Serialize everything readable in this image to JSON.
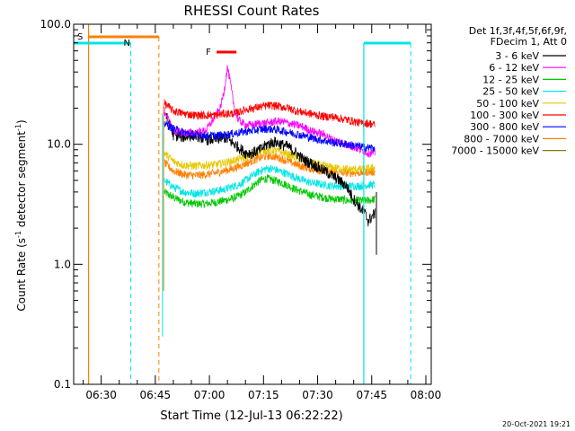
{
  "chart_data": {
    "type": "line",
    "title": "RHESSI Count Rates",
    "xlabel": "Start Time (12-Jul-13 06:22:22)",
    "ylabel_main": "Count Rate (s",
    "ylabel_sup1": "-1",
    "ylabel_mid": " detector segment",
    "ylabel_sup2": "-1",
    "ylabel_end": ")",
    "y_scale": "log",
    "ylim": [
      0.1,
      100
    ],
    "y_ticks": [
      {
        "value": 0.1,
        "label": "0.1"
      },
      {
        "value": 1,
        "label": "1.0"
      },
      {
        "value": 10,
        "label": "10.0"
      },
      {
        "value": 100,
        "label": "100.0"
      }
    ],
    "xlim_minutes": [
      22.37,
      121.5
    ],
    "x_ticks": [
      {
        "minute": 30,
        "label": "06:30"
      },
      {
        "minute": 45,
        "label": "06:45"
      },
      {
        "minute": 60,
        "label": "07:00"
      },
      {
        "minute": 75,
        "label": "07:15"
      },
      {
        "minute": 90,
        "label": "07:30"
      },
      {
        "minute": 105,
        "label": "07:45"
      },
      {
        "minute": 120,
        "label": "08:00"
      }
    ],
    "legend": {
      "header_line1": "Det 1f,3f,4f,5f,6f,9f,",
      "header_line2": "FDecim 1, Att 0",
      "placement": "right"
    },
    "series": [
      {
        "name": "3 - 6 keV",
        "color": "#000000",
        "points": [
          [
            47.5,
            19
          ],
          [
            50,
            12
          ],
          [
            53,
            11.5
          ],
          [
            56,
            12
          ],
          [
            59,
            11
          ],
          [
            62,
            11
          ],
          [
            64,
            11.5
          ],
          [
            66,
            10.5
          ],
          [
            68,
            9.5
          ],
          [
            70,
            8.5
          ],
          [
            72,
            8.5
          ],
          [
            74,
            9
          ],
          [
            76,
            10
          ],
          [
            78,
            10.5
          ],
          [
            80,
            10
          ],
          [
            82,
            9.5
          ],
          [
            84,
            8.5
          ],
          [
            86,
            7.5
          ],
          [
            88,
            7
          ],
          [
            90,
            6.5
          ],
          [
            92,
            6
          ],
          [
            94,
            5.5
          ],
          [
            96,
            5
          ],
          [
            98,
            4.5
          ],
          [
            100,
            3.5
          ],
          [
            102,
            2.9
          ],
          [
            103,
            2.7
          ],
          [
            104,
            2.3
          ],
          [
            106,
            2.7
          ]
        ]
      },
      {
        "name": "6 - 12 keV",
        "color": "#ff00ff",
        "points": [
          [
            47.5,
            19
          ],
          [
            50,
            13
          ],
          [
            53,
            12.5
          ],
          [
            56,
            12.5
          ],
          [
            59,
            13
          ],
          [
            61,
            16
          ],
          [
            63,
            20
          ],
          [
            64,
            27
          ],
          [
            65,
            44
          ],
          [
            66,
            30
          ],
          [
            67,
            19
          ],
          [
            68,
            16
          ],
          [
            70,
            14.5
          ],
          [
            72,
            14.5
          ],
          [
            74,
            15
          ],
          [
            76,
            15
          ],
          [
            78,
            15.5
          ],
          [
            80,
            15.5
          ],
          [
            82,
            15
          ],
          [
            84,
            14.5
          ],
          [
            86,
            14
          ],
          [
            88,
            13
          ],
          [
            90,
            12.5
          ],
          [
            92,
            12
          ],
          [
            94,
            11
          ],
          [
            96,
            10.5
          ],
          [
            98,
            10
          ],
          [
            100,
            9.5
          ],
          [
            102,
            9
          ],
          [
            104,
            8.5
          ],
          [
            106,
            8.5
          ]
        ]
      },
      {
        "name": "12 - 25 keV",
        "color": "#00c800",
        "points": [
          [
            47.5,
            4
          ],
          [
            50,
            3.6
          ],
          [
            53,
            3.3
          ],
          [
            56,
            3.2
          ],
          [
            59,
            3.2
          ],
          [
            62,
            3.3
          ],
          [
            64,
            3.4
          ],
          [
            66,
            3.5
          ],
          [
            68,
            3.7
          ],
          [
            70,
            4
          ],
          [
            72,
            4.5
          ],
          [
            74,
            5
          ],
          [
            76,
            5.2
          ],
          [
            78,
            5
          ],
          [
            80,
            4.8
          ],
          [
            82,
            4.5
          ],
          [
            84,
            4.2
          ],
          [
            86,
            4
          ],
          [
            88,
            3.8
          ],
          [
            90,
            3.7
          ],
          [
            92,
            3.6
          ],
          [
            94,
            3.5
          ],
          [
            96,
            3.5
          ],
          [
            98,
            3.4
          ],
          [
            100,
            3.4
          ],
          [
            102,
            3.4
          ],
          [
            104,
            3.4
          ],
          [
            106,
            3.5
          ]
        ]
      },
      {
        "name": "25 - 50 keV",
        "color": "#00e5e5",
        "points": [
          [
            47.5,
            5
          ],
          [
            50,
            4.4
          ],
          [
            53,
            4
          ],
          [
            56,
            3.9
          ],
          [
            59,
            4
          ],
          [
            62,
            4.1
          ],
          [
            64,
            4.2
          ],
          [
            66,
            4.4
          ],
          [
            68,
            4.6
          ],
          [
            70,
            5
          ],
          [
            72,
            5.5
          ],
          [
            74,
            6
          ],
          [
            76,
            6.3
          ],
          [
            78,
            6.2
          ],
          [
            80,
            5.9
          ],
          [
            82,
            5.6
          ],
          [
            84,
            5.3
          ],
          [
            86,
            5
          ],
          [
            88,
            4.8
          ],
          [
            90,
            4.7
          ],
          [
            92,
            4.6
          ],
          [
            94,
            4.5
          ],
          [
            96,
            4.5
          ],
          [
            98,
            4.5
          ],
          [
            100,
            4.5
          ],
          [
            102,
            4.5
          ],
          [
            104,
            4.6
          ],
          [
            106,
            4.6
          ]
        ]
      },
      {
        "name": "50 - 100 keV",
        "color": "#e6c800",
        "points": [
          [
            47.5,
            8.5
          ],
          [
            50,
            7.2
          ],
          [
            53,
            6.7
          ],
          [
            56,
            6.6
          ],
          [
            59,
            6.7
          ],
          [
            62,
            6.8
          ],
          [
            64,
            7
          ],
          [
            66,
            7.2
          ],
          [
            68,
            7.5
          ],
          [
            70,
            7.8
          ],
          [
            72,
            8.2
          ],
          [
            74,
            8.8
          ],
          [
            76,
            9
          ],
          [
            78,
            8.9
          ],
          [
            80,
            8.6
          ],
          [
            82,
            8.2
          ],
          [
            84,
            7.8
          ],
          [
            86,
            7.4
          ],
          [
            88,
            7.1
          ],
          [
            90,
            6.8
          ],
          [
            92,
            6.6
          ],
          [
            94,
            6.4
          ],
          [
            96,
            6.3
          ],
          [
            98,
            6.2
          ],
          [
            100,
            6.2
          ],
          [
            102,
            6.2
          ],
          [
            104,
            6.3
          ],
          [
            106,
            6.4
          ]
        ]
      },
      {
        "name": "100 - 300 keV",
        "color": "#ff0000",
        "points": [
          [
            47.5,
            22
          ],
          [
            50,
            19
          ],
          [
            53,
            18
          ],
          [
            56,
            17.5
          ],
          [
            59,
            17.5
          ],
          [
            62,
            17.5
          ],
          [
            64,
            18
          ],
          [
            66,
            18
          ],
          [
            68,
            18.5
          ],
          [
            70,
            19.5
          ],
          [
            72,
            20
          ],
          [
            74,
            20.5
          ],
          [
            76,
            21
          ],
          [
            78,
            21
          ],
          [
            80,
            20.5
          ],
          [
            82,
            20
          ],
          [
            84,
            19
          ],
          [
            86,
            18.5
          ],
          [
            88,
            18
          ],
          [
            90,
            17.5
          ],
          [
            92,
            17
          ],
          [
            94,
            17
          ],
          [
            96,
            16.5
          ],
          [
            98,
            16
          ],
          [
            100,
            15.5
          ],
          [
            102,
            15
          ],
          [
            104,
            15
          ],
          [
            106,
            14.5
          ]
        ]
      },
      {
        "name": "300 - 800 keV",
        "color": "#0000ff",
        "points": [
          [
            47.5,
            15
          ],
          [
            50,
            13.5
          ],
          [
            53,
            12.5
          ],
          [
            56,
            12
          ],
          [
            59,
            11.8
          ],
          [
            62,
            11.8
          ],
          [
            64,
            12
          ],
          [
            66,
            12.2
          ],
          [
            68,
            12.5
          ],
          [
            70,
            12.8
          ],
          [
            72,
            13
          ],
          [
            74,
            13.3
          ],
          [
            76,
            13.5
          ],
          [
            78,
            13.3
          ],
          [
            80,
            13
          ],
          [
            82,
            12.6
          ],
          [
            84,
            12.2
          ],
          [
            86,
            11.8
          ],
          [
            88,
            11.4
          ],
          [
            90,
            11
          ],
          [
            92,
            10.7
          ],
          [
            94,
            10.4
          ],
          [
            96,
            10.2
          ],
          [
            98,
            10
          ],
          [
            100,
            9.8
          ],
          [
            102,
            9.6
          ],
          [
            104,
            9.4
          ],
          [
            106,
            9.3
          ]
        ]
      },
      {
        "name": "800 - 7000 keV",
        "color": "#ff8000",
        "points": [
          [
            47.5,
            7
          ],
          [
            50,
            6
          ],
          [
            53,
            5.6
          ],
          [
            56,
            5.5
          ],
          [
            59,
            5.6
          ],
          [
            62,
            5.8
          ],
          [
            64,
            6
          ],
          [
            66,
            6.2
          ],
          [
            68,
            6.5
          ],
          [
            70,
            6.9
          ],
          [
            72,
            7.3
          ],
          [
            74,
            7.7
          ],
          [
            76,
            8
          ],
          [
            78,
            7.9
          ],
          [
            80,
            7.6
          ],
          [
            82,
            7.2
          ],
          [
            84,
            6.8
          ],
          [
            86,
            6.5
          ],
          [
            88,
            6.3
          ],
          [
            90,
            6.1
          ],
          [
            92,
            6
          ],
          [
            94,
            5.9
          ],
          [
            96,
            5.8
          ],
          [
            98,
            5.8
          ],
          [
            100,
            5.8
          ],
          [
            102,
            5.8
          ],
          [
            104,
            5.9
          ],
          [
            106,
            5.9
          ]
        ]
      },
      {
        "name": "7000 - 15000 keV",
        "color": "#808000",
        "points": []
      }
    ],
    "flag_bars": [
      {
        "label": "S",
        "color": "#ff8000",
        "start_minute": 26.5,
        "end_minute": 46
      },
      {
        "label": "N",
        "color": "#00e5e5",
        "start_minute": 22.37,
        "end_minute": 38.2
      },
      {
        "label": "",
        "color": "#00e5e5",
        "start_minute": 102.8,
        "end_minute": 115.8
      },
      {
        "label": "F",
        "color": "#ff0000",
        "start_minute": 62,
        "end_minute": 67.5
      }
    ]
  },
  "footer": {
    "timestamp": "20-Oct-2021 19:21"
  }
}
